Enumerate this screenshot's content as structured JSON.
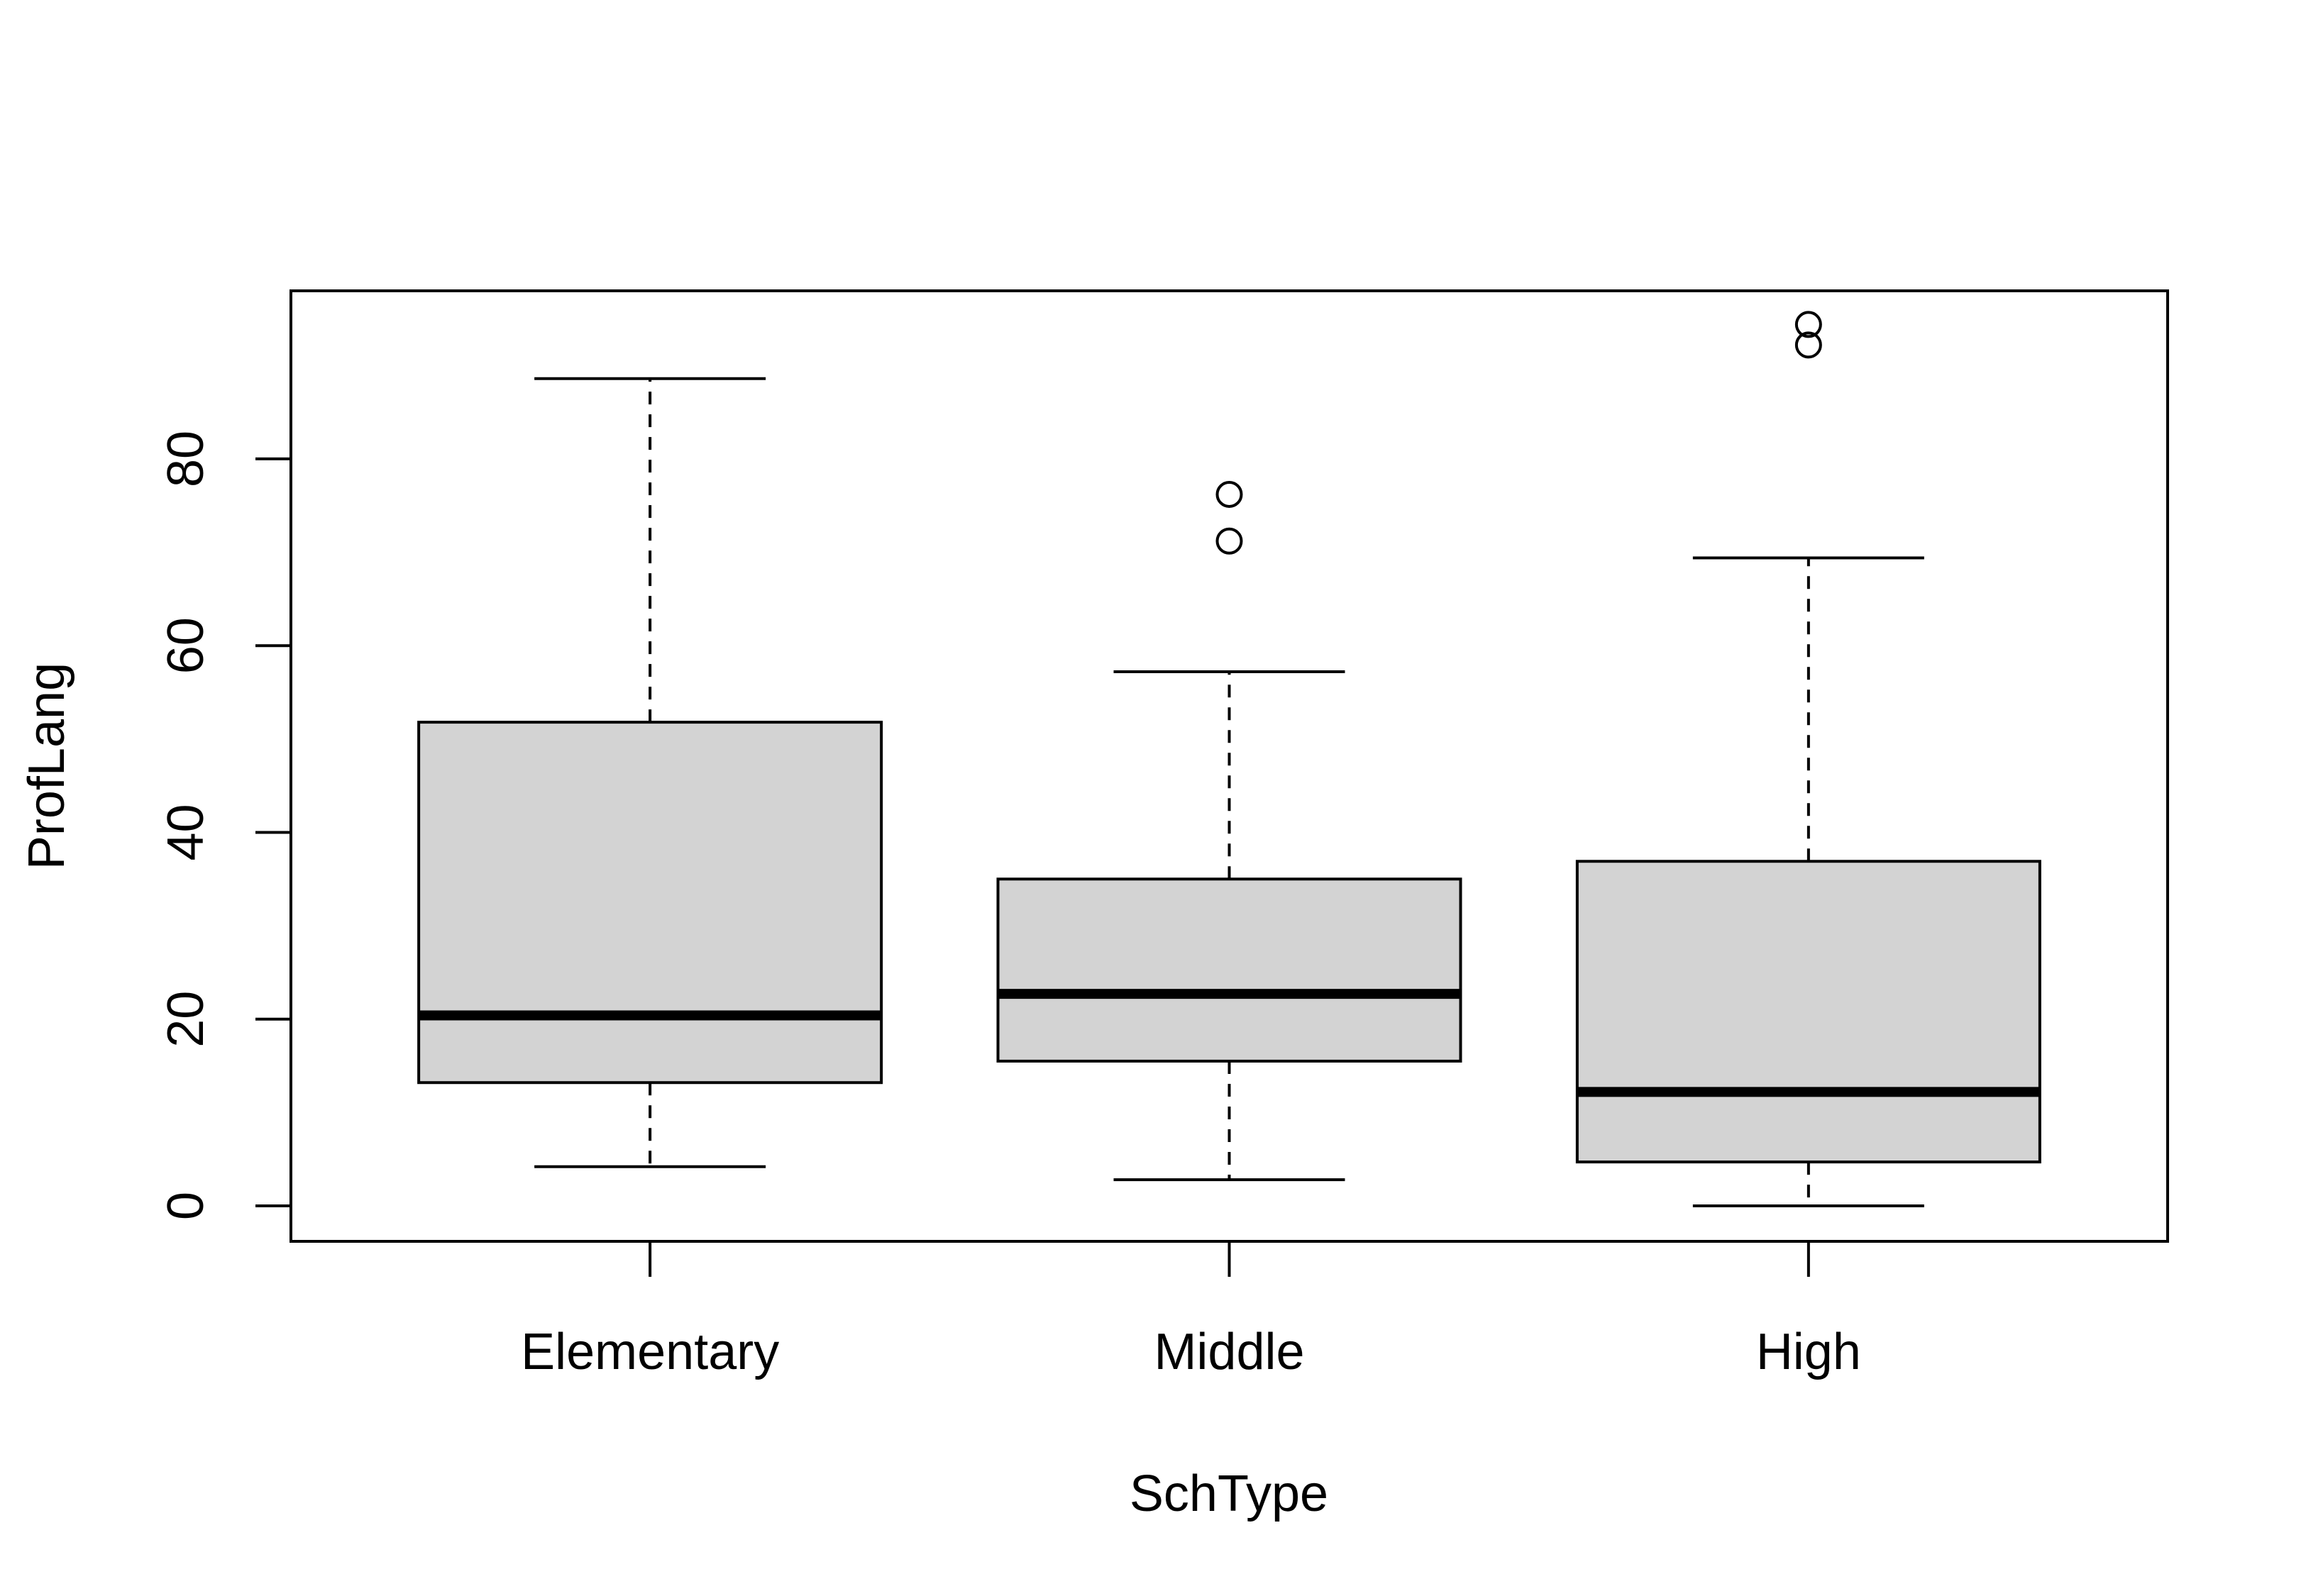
{
  "chart_data": {
    "type": "boxplot",
    "title": "",
    "xlabel": "SchType",
    "ylabel": "ProfLang",
    "categories": [
      "Elementary",
      "Middle",
      "High"
    ],
    "boxes": [
      {
        "category": "Elementary",
        "whisker_low": 4.2,
        "q1": 13.2,
        "median": 20.4,
        "q3": 51.8,
        "whisker_high": 88.6,
        "outliers": []
      },
      {
        "category": "Middle",
        "whisker_low": 2.8,
        "q1": 15.5,
        "median": 22.7,
        "q3": 35.0,
        "whisker_high": 57.2,
        "outliers": [
          71.2,
          76.2
        ]
      },
      {
        "category": "High",
        "whisker_low": 0.0,
        "q1": 4.7,
        "median": 12.2,
        "q3": 36.9,
        "whisker_high": 69.4,
        "outliers": [
          92.2,
          94.4
        ]
      }
    ],
    "y_ticks": [
      0,
      20,
      40,
      60,
      80
    ],
    "ylim": [
      -3.8,
      98.0
    ],
    "grid": false,
    "legend": "none",
    "colors": {
      "box_fill": "#d3d3d3",
      "stroke": "#000000",
      "background": "#ffffff"
    }
  }
}
